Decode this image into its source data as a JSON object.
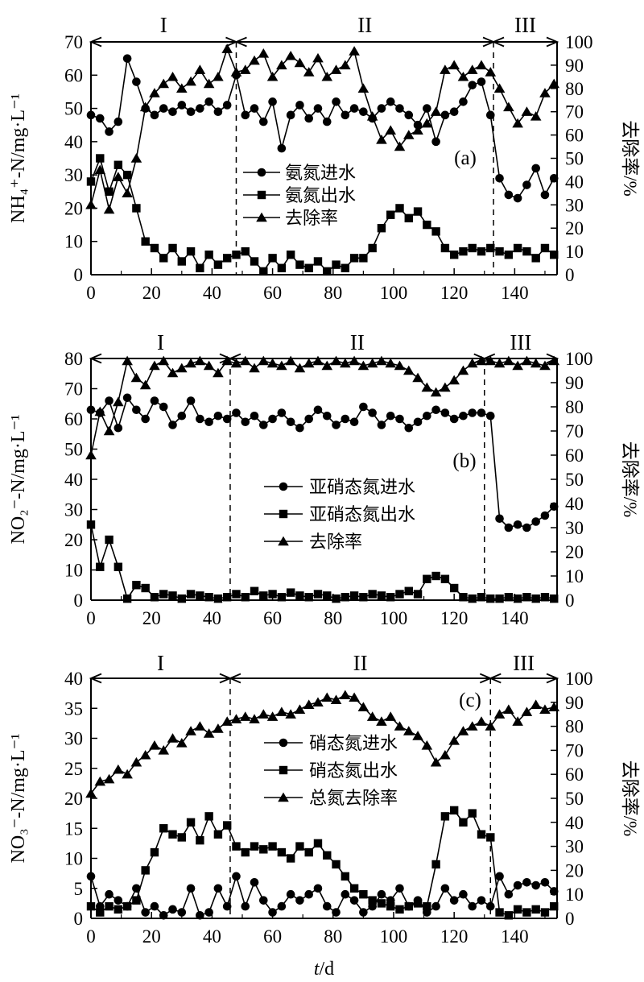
{
  "figure": {
    "xlabel": "t/d",
    "phase_labels": [
      "I",
      "II",
      "III"
    ],
    "colors": {
      "line": "#000000",
      "background": "#ffffff"
    }
  },
  "chart_data": [
    {
      "type": "line",
      "panel_letter": "(a)",
      "ylabel_left": "NH₄⁺-N/mg·L⁻¹",
      "ylabel_right": "去除率/%",
      "xlabel": "",
      "xlim": [
        0,
        154
      ],
      "xticks": [
        0,
        20,
        40,
        60,
        80,
        100,
        120,
        140
      ],
      "ylim_left": [
        0,
        70
      ],
      "yticks_left": [
        0,
        10,
        20,
        30,
        40,
        50,
        60,
        70
      ],
      "ylim_right": [
        0,
        100
      ],
      "yticks_right": [
        0,
        10,
        20,
        30,
        40,
        50,
        60,
        70,
        80,
        90,
        100
      ],
      "phase_boundaries": [
        48,
        133
      ],
      "phase_labels": [
        "I",
        "II",
        "III"
      ],
      "x": [
        0,
        3,
        6,
        9,
        12,
        15,
        18,
        21,
        24,
        27,
        30,
        33,
        36,
        39,
        42,
        45,
        48,
        51,
        54,
        57,
        60,
        63,
        66,
        69,
        72,
        75,
        78,
        81,
        84,
        87,
        90,
        93,
        96,
        99,
        102,
        105,
        108,
        111,
        114,
        117,
        120,
        123,
        126,
        129,
        132,
        135,
        138,
        141,
        144,
        147,
        150,
        153
      ],
      "series": [
        {
          "name": "氨氮进水",
          "role": "inlet",
          "marker": "circle",
          "axis": "left",
          "values": [
            48,
            47,
            43,
            46,
            65,
            58,
            50,
            48,
            50,
            49,
            51,
            49,
            50,
            52,
            49,
            51,
            60,
            48,
            50,
            46,
            52,
            38,
            48,
            51,
            47,
            50,
            46,
            52,
            48,
            50,
            49,
            47,
            50,
            52,
            50,
            48,
            45,
            50,
            40,
            48,
            49,
            52,
            57,
            58,
            48,
            29,
            24,
            23,
            27,
            32,
            24,
            29
          ]
        },
        {
          "name": "氨氮出水",
          "role": "outlet",
          "marker": "square",
          "axis": "left",
          "values": [
            28,
            35,
            25,
            33,
            30,
            20,
            10,
            8,
            5,
            8,
            4,
            7,
            2,
            6,
            3,
            5,
            6,
            7,
            4,
            1,
            5,
            2,
            6,
            3,
            2,
            4,
            1,
            3,
            2,
            5,
            5,
            8,
            14,
            18,
            20,
            17,
            19,
            15,
            13,
            8,
            6,
            7,
            8,
            7,
            8,
            7,
            6,
            8,
            7,
            5,
            8,
            6
          ]
        },
        {
          "name": "去除率",
          "role": "removal",
          "marker": "triangle",
          "axis": "right",
          "values": [
            30,
            45,
            28,
            42,
            35,
            50,
            72,
            78,
            82,
            85,
            80,
            83,
            88,
            82,
            85,
            97,
            87,
            88,
            92,
            95,
            85,
            90,
            94,
            91,
            87,
            93,
            85,
            88,
            90,
            96,
            80,
            68,
            58,
            62,
            55,
            60,
            62,
            65,
            70,
            88,
            90,
            85,
            88,
            90,
            87,
            80,
            72,
            65,
            70,
            68,
            78,
            82
          ]
        }
      ]
    },
    {
      "type": "line",
      "panel_letter": "(b)",
      "ylabel_left": "NO₂⁻-N/mg·L⁻¹",
      "ylabel_right": "去除率/%",
      "xlabel": "",
      "xlim": [
        0,
        154
      ],
      "xticks": [
        0,
        20,
        40,
        60,
        80,
        100,
        120,
        140
      ],
      "ylim_left": [
        0,
        80
      ],
      "yticks_left": [
        0,
        10,
        20,
        30,
        40,
        50,
        60,
        70,
        80
      ],
      "ylim_right": [
        0,
        100
      ],
      "yticks_right": [
        0,
        10,
        20,
        30,
        40,
        50,
        60,
        70,
        80,
        90,
        100
      ],
      "phase_boundaries": [
        46,
        130
      ],
      "phase_labels": [
        "I",
        "II",
        "III"
      ],
      "x": [
        0,
        3,
        6,
        9,
        12,
        15,
        18,
        21,
        24,
        27,
        30,
        33,
        36,
        39,
        42,
        45,
        48,
        51,
        54,
        57,
        60,
        63,
        66,
        69,
        72,
        75,
        78,
        81,
        84,
        87,
        90,
        93,
        96,
        99,
        102,
        105,
        108,
        111,
        114,
        117,
        120,
        123,
        126,
        129,
        132,
        135,
        138,
        141,
        144,
        147,
        150,
        153
      ],
      "series": [
        {
          "name": "亚硝态氮进水",
          "role": "inlet",
          "marker": "circle",
          "axis": "left",
          "values": [
            63,
            62,
            66,
            57,
            67,
            63,
            60,
            66,
            64,
            58,
            61,
            66,
            60,
            59,
            61,
            60,
            62,
            59,
            61,
            58,
            60,
            62,
            59,
            57,
            60,
            63,
            61,
            58,
            60,
            59,
            64,
            62,
            58,
            61,
            60,
            57,
            59,
            61,
            63,
            62,
            60,
            61,
            62,
            62,
            61,
            27,
            24,
            25,
            24,
            26,
            28,
            31
          ]
        },
        {
          "name": "亚硝态氮出水",
          "role": "outlet",
          "marker": "square",
          "axis": "left",
          "values": [
            25,
            11,
            20,
            11,
            0.5,
            5,
            4,
            1,
            2,
            1.5,
            0.5,
            2,
            1.5,
            1,
            0.5,
            1,
            2,
            1,
            3,
            1.5,
            2,
            1,
            2.5,
            1.5,
            1,
            2,
            1.5,
            0.5,
            1,
            1.5,
            1,
            2,
            1.5,
            1,
            2,
            3,
            2,
            7,
            8,
            7,
            4,
            1,
            0.5,
            1,
            0.5,
            0.5,
            1,
            0.5,
            1,
            0.5,
            1,
            0.5
          ]
        },
        {
          "name": "去除率",
          "role": "removal",
          "marker": "triangle",
          "axis": "right",
          "values": [
            60,
            78,
            70,
            82,
            99,
            92,
            89,
            97,
            99,
            94,
            96,
            98,
            99,
            97,
            94,
            99,
            98,
            99,
            96,
            99,
            98,
            97,
            99,
            96,
            98,
            99,
            97,
            99,
            98,
            99,
            97,
            98,
            99,
            98,
            97,
            95,
            92,
            88,
            86,
            88,
            91,
            95,
            98,
            99,
            99,
            98,
            99,
            97,
            99,
            98,
            97,
            99
          ]
        }
      ]
    },
    {
      "type": "line",
      "panel_letter": "(c)",
      "ylabel_left": "NO₃⁻-N/mg·L⁻¹",
      "ylabel_right": "去除率/%",
      "xlabel": "t/d",
      "xlim": [
        0,
        154
      ],
      "xticks": [
        0,
        20,
        40,
        60,
        80,
        100,
        120,
        140
      ],
      "ylim_left": [
        0,
        40
      ],
      "yticks_left": [
        0,
        5,
        10,
        15,
        20,
        25,
        30,
        35,
        40
      ],
      "ylim_right": [
        0,
        100
      ],
      "yticks_right": [
        0,
        10,
        20,
        30,
        40,
        50,
        60,
        70,
        80,
        90,
        100
      ],
      "phase_boundaries": [
        46,
        132
      ],
      "phase_labels": [
        "I",
        "II",
        "III"
      ],
      "x": [
        0,
        3,
        6,
        9,
        12,
        15,
        18,
        21,
        24,
        27,
        30,
        33,
        36,
        39,
        42,
        45,
        48,
        51,
        54,
        57,
        60,
        63,
        66,
        69,
        72,
        75,
        78,
        81,
        84,
        87,
        90,
        93,
        96,
        99,
        102,
        105,
        108,
        111,
        114,
        117,
        120,
        123,
        126,
        129,
        132,
        135,
        138,
        141,
        144,
        147,
        150,
        153
      ],
      "series": [
        {
          "name": "硝态氮进水",
          "role": "inlet",
          "marker": "circle",
          "axis": "left",
          "values": [
            7,
            2,
            4,
            3,
            2,
            5,
            1,
            2,
            0.5,
            1.5,
            1,
            5,
            0.5,
            1,
            5,
            2,
            7,
            2,
            6,
            3,
            1,
            2,
            4,
            3,
            4,
            5,
            2,
            1,
            4,
            3,
            1,
            2,
            4,
            3,
            5,
            2,
            3,
            1,
            2,
            5,
            3,
            4,
            2,
            3,
            2,
            7,
            4,
            5.5,
            6,
            5.5,
            6,
            4.5
          ]
        },
        {
          "name": "硝态氮出水",
          "role": "outlet",
          "marker": "square",
          "axis": "left",
          "values": [
            2,
            1,
            2,
            1.5,
            2,
            3,
            8,
            11,
            15,
            14,
            13.5,
            16,
            13,
            17,
            14,
            15.5,
            12,
            11,
            12,
            11.5,
            12,
            11,
            10,
            12,
            11,
            12.5,
            10.5,
            9,
            7,
            5,
            4,
            3,
            2.5,
            2,
            1.5,
            2,
            2.5,
            2,
            9,
            17,
            18,
            16,
            17.5,
            14,
            13.5,
            1,
            0.5,
            1.5,
            1,
            1.5,
            1,
            2
          ]
        },
        {
          "name": "总氮去除率",
          "role": "removal",
          "marker": "triangle",
          "axis": "right",
          "values": [
            52,
            57,
            58,
            62,
            60,
            65,
            68,
            72,
            70,
            75,
            73,
            78,
            80,
            77,
            79,
            82,
            83,
            84,
            83,
            85,
            84,
            86,
            85,
            87,
            89,
            90,
            92,
            91,
            93,
            92,
            88,
            84,
            82,
            84,
            80,
            78,
            76,
            72,
            65,
            68,
            74,
            78,
            80,
            82,
            80,
            85,
            87,
            82,
            86,
            89,
            87,
            88
          ]
        }
      ]
    }
  ]
}
